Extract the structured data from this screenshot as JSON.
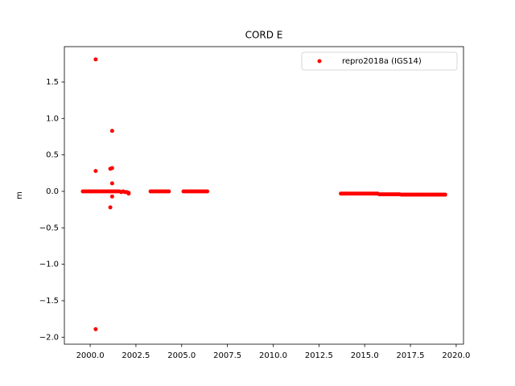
{
  "chart_data": {
    "type": "scatter",
    "title": "CORD E",
    "y_label": "m",
    "x": [
      1999.6,
      1999.7,
      1999.8,
      1999.9,
      2000.0,
      2000.1,
      2000.2,
      2000.3,
      2000.4,
      2000.5,
      2000.6,
      2000.7,
      2000.8,
      2000.9,
      2001.0,
      2001.1,
      2001.2,
      2001.3,
      2001.4,
      2001.5,
      2001.6,
      2001.7,
      2001.8,
      2001.9,
      2002.0,
      2002.1,
      2000.3,
      2000.3,
      2000.3,
      2001.2,
      2001.1,
      2001.2,
      2001.2,
      2001.1,
      2001.2,
      2002.1,
      2003.3,
      2003.4,
      2003.5,
      2003.6,
      2003.7,
      2003.8,
      2003.9,
      2004.0,
      2004.1,
      2004.2,
      2004.3,
      2005.1,
      2005.2,
      2005.3,
      2005.4,
      2005.5,
      2005.6,
      2005.7,
      2005.8,
      2005.9,
      2006.0,
      2006.1,
      2006.2,
      2006.3,
      2006.4,
      2013.7,
      2013.8,
      2013.9,
      2014.0,
      2014.1,
      2014.2,
      2014.3,
      2014.4,
      2014.5,
      2014.6,
      2014.7,
      2014.8,
      2014.9,
      2015.0,
      2015.1,
      2015.2,
      2015.3,
      2015.4,
      2015.5,
      2015.6,
      2015.7,
      2015.8,
      2015.9,
      2016.0,
      2016.1,
      2016.2,
      2016.3,
      2016.4,
      2016.5,
      2016.6,
      2016.7,
      2016.8,
      2016.9,
      2017.0,
      2017.1,
      2017.2,
      2017.3,
      2017.4,
      2017.5,
      2017.6,
      2017.7,
      2017.8,
      2017.9,
      2018.0,
      2018.1,
      2018.2,
      2018.3,
      2018.4,
      2018.5,
      2018.6,
      2018.7,
      2018.8,
      2018.9,
      2019.0,
      2019.1,
      2019.2,
      2019.3,
      2019.4
    ],
    "series": [
      {
        "name": "repro2018a (IGS14)",
        "color": "#ff0000",
        "values": [
          0.0,
          0.0,
          0.0,
          0.0,
          0.0,
          0.0,
          0.0,
          0.0,
          0.0,
          0.0,
          0.0,
          0.0,
          0.0,
          0.0,
          0.0,
          0.0,
          0.0,
          0.0,
          0.0,
          0.0,
          0.0,
          -0.01,
          0.0,
          -0.01,
          -0.01,
          -0.02,
          1.81,
          0.28,
          -1.89,
          0.83,
          0.31,
          0.32,
          0.11,
          -0.22,
          -0.07,
          -0.03,
          0.0,
          0.0,
          0.0,
          0.0,
          0.0,
          0.0,
          0.0,
          0.0,
          0.0,
          0.0,
          0.0,
          0.0,
          0.0,
          0.0,
          0.0,
          0.0,
          0.0,
          0.0,
          0.0,
          0.0,
          0.0,
          0.0,
          0.0,
          0.0,
          0.0,
          -0.03,
          -0.03,
          -0.03,
          -0.03,
          -0.03,
          -0.03,
          -0.03,
          -0.03,
          -0.03,
          -0.03,
          -0.03,
          -0.03,
          -0.03,
          -0.03,
          -0.03,
          -0.03,
          -0.03,
          -0.03,
          -0.03,
          -0.03,
          -0.03,
          -0.04,
          -0.04,
          -0.04,
          -0.04,
          -0.04,
          -0.04,
          -0.04,
          -0.04,
          -0.04,
          -0.04,
          -0.04,
          -0.04,
          -0.045,
          -0.045,
          -0.045,
          -0.045,
          -0.045,
          -0.045,
          -0.045,
          -0.045,
          -0.045,
          -0.045,
          -0.045,
          -0.045,
          -0.045,
          -0.045,
          -0.045,
          -0.045,
          -0.045,
          -0.045,
          -0.045,
          -0.045,
          -0.045,
          -0.045,
          -0.045,
          -0.045,
          -0.045
        ]
      }
    ],
    "xlim": [
      1998.59,
      2020.4
    ],
    "ylim": [
      -2.096,
      1.985
    ],
    "xticks": [
      {
        "value": 2000,
        "label": "2000.0"
      },
      2002.5,
      {
        "value": 2005,
        "label": "2005.0"
      },
      2007.5,
      {
        "value": 2010,
        "label": "2010.0"
      },
      2012.5,
      {
        "value": 2015,
        "label": "2015.0"
      },
      2017.5,
      {
        "value": 2020,
        "label": "2020.0"
      }
    ],
    "yticks": [
      {
        "value": -2,
        "label": "−2.0"
      },
      {
        "value": -1.5,
        "label": "−1.5"
      },
      {
        "value": -1,
        "label": "−1.0"
      },
      {
        "value": -0.5,
        "label": "−0.5"
      },
      {
        "value": 0,
        "label": "0.0"
      },
      0.5,
      {
        "value": 1,
        "label": "1.0"
      },
      1.5
    ],
    "legend": "upper right",
    "grid": false
  }
}
